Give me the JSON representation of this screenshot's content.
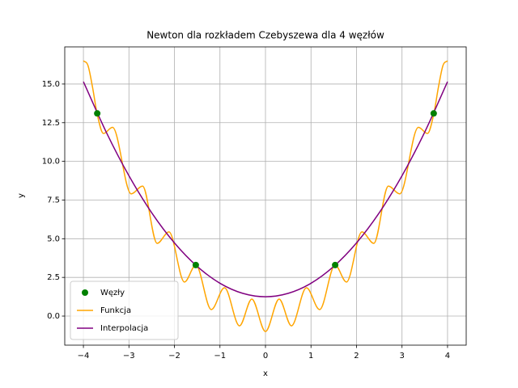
{
  "chart_data": {
    "type": "line",
    "title": "Newton dla rozkładem Czebyszewa dla 4 węzłów",
    "x_label": "x",
    "y_label": "y",
    "xlim": [
      -4.41,
      4.41
    ],
    "ylim": [
      -1.88,
      17.4
    ],
    "xticks": [
      {
        "value": -4,
        "label": "−4"
      },
      {
        "value": -3,
        "label": "−3"
      },
      {
        "value": -2,
        "label": "−2"
      },
      {
        "value": -1,
        "label": "−1"
      },
      0,
      1,
      2,
      3,
      4
    ],
    "yticks": [
      {
        "value": 0,
        "label": "0.0"
      },
      {
        "value": 2.5,
        "label": "2.5"
      },
      {
        "value": 5,
        "label": "5.0"
      },
      {
        "value": 7.5,
        "label": "7.5"
      },
      {
        "value": 10,
        "label": "10.0"
      },
      {
        "value": 12.5,
        "label": "12.5"
      },
      {
        "value": 15,
        "label": "15.0"
      }
    ],
    "grid": true,
    "legend": "lower left",
    "series": [
      {
        "name": "Węzły",
        "type": "scatter",
        "color": "green",
        "x": [
          -3.696,
          -1.531,
          1.531,
          3.696
        ],
        "values": [
          13.1,
          3.3,
          3.3,
          13.1
        ]
      },
      {
        "name": "Funkcja",
        "type": "line",
        "color": "orange",
        "x": [
          -4,
          -3.9,
          -3.8,
          -3.7,
          -3.56,
          -3.36,
          -2.95,
          -2.7,
          -2.38,
          -2.12,
          -1.78,
          -1.53,
          -1.19,
          -0.9,
          -0.57,
          -0.3,
          0,
          0.3,
          0.57,
          0.9,
          1.19,
          1.53,
          1.78,
          2.12,
          2.38,
          2.7,
          2.95,
          3.36,
          3.56,
          3.7,
          3.8,
          3.9,
          4
        ],
        "values": [
          16.5,
          16.2,
          14.8,
          13.1,
          11.8,
          12.2,
          7.9,
          8.4,
          4.7,
          5.44,
          2.2,
          3.3,
          0.42,
          1.83,
          -0.63,
          1.1,
          -1.0,
          1.1,
          -0.63,
          1.83,
          0.42,
          3.3,
          2.2,
          5.44,
          4.7,
          8.4,
          7.9,
          12.2,
          11.8,
          13.1,
          14.8,
          16.2,
          16.5
        ]
      },
      {
        "name": "Interpolacja",
        "type": "line",
        "color": "purple",
        "x": [
          -4,
          -3.5,
          -3,
          -2.5,
          -2,
          -1.5,
          -1,
          -0.5,
          0,
          0.5,
          1,
          1.5,
          2,
          2.5,
          3,
          3.5,
          4
        ],
        "values": [
          15.15,
          11.9,
          9.07,
          6.68,
          4.73,
          3.21,
          2.12,
          1.47,
          1.25,
          1.47,
          2.12,
          3.21,
          4.73,
          6.68,
          9.07,
          11.9,
          15.15
        ]
      }
    ]
  }
}
